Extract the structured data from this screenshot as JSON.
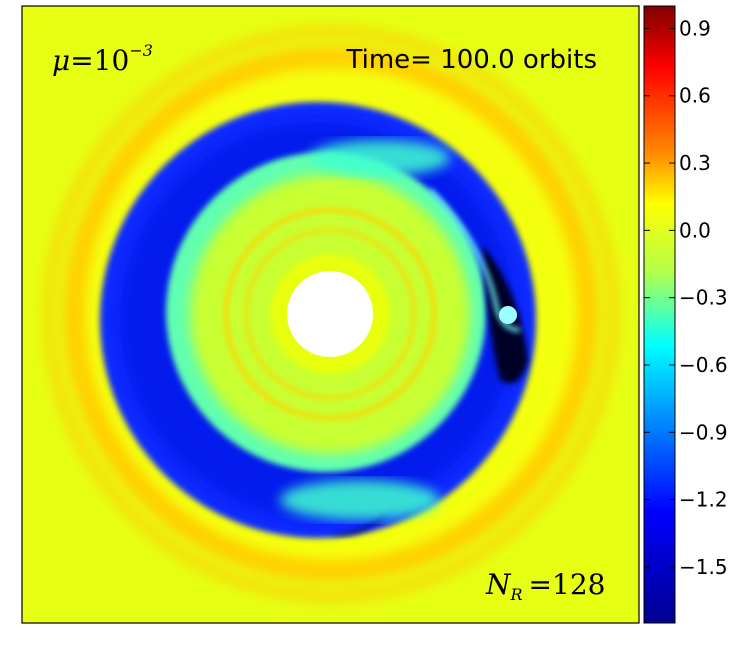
{
  "chart_data": {
    "type": "heatmap",
    "annotations": {
      "mass_ratio_symbol": "μ",
      "mass_ratio_equals": "=",
      "mass_ratio_base": "10",
      "mass_ratio_exp": "−3",
      "time_label": "Time= 100.0 orbits",
      "resolution_symbol": "N",
      "resolution_sub": "R",
      "resolution_equals": "=",
      "resolution_value": "128"
    },
    "colorbar": {
      "colormap": "jet",
      "range": [
        -1.75,
        1.0
      ],
      "tick_values": [
        0.9,
        0.6,
        0.3,
        0.0,
        -0.3,
        -0.6,
        -0.9,
        -1.2,
        -1.5
      ],
      "tick_labels": [
        "0.9",
        "0.6",
        "0.3",
        "0.0",
        "−0.3",
        "−0.6",
        "−0.9",
        "−1.2",
        "−1.5"
      ]
    },
    "field": {
      "background_value": 0.05,
      "inner_hole": "white",
      "features": [
        {
          "name": "outer bright ring",
          "value": 0.3
        },
        {
          "name": "gap ring",
          "value": -1.35
        },
        {
          "name": "inner disk",
          "value": -0.25
        },
        {
          "name": "inner thin rings",
          "value": 0.15
        },
        {
          "name": "planet horseshoe region",
          "value": -1.75
        }
      ]
    },
    "grid": false
  },
  "colors": {
    "jet_dark_blue": "#00008f",
    "jet_blue": "#0000ff",
    "jet_cyan": "#00ffff",
    "jet_yellow": "#ffff00",
    "jet_red": "#ff0000",
    "jet_dark_red": "#800000"
  }
}
